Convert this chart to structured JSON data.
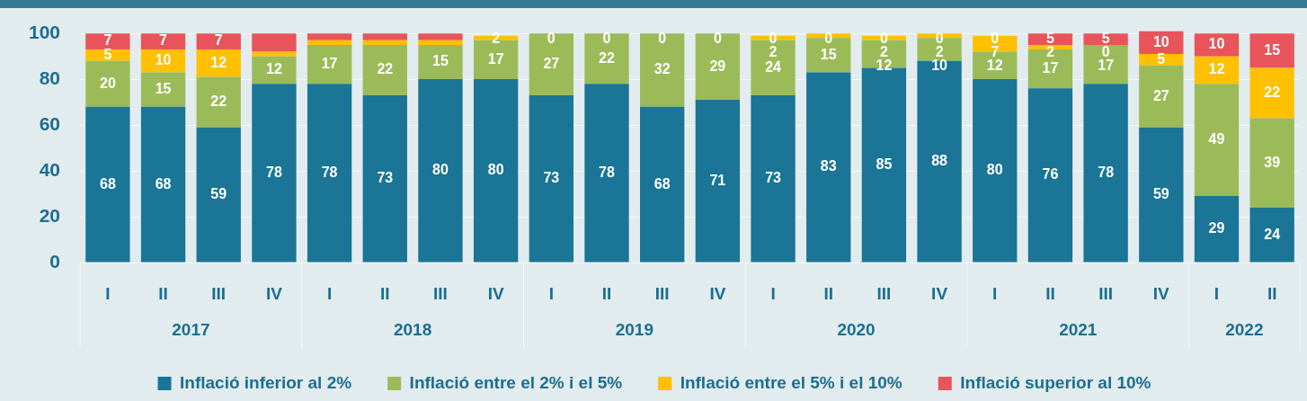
{
  "chart_data": {
    "type": "bar",
    "stacked": true,
    "categories": [
      "I",
      "II",
      "III",
      "IV",
      "I",
      "II",
      "III",
      "IV",
      "I",
      "II",
      "III",
      "IV",
      "I",
      "II",
      "III",
      "IV",
      "I",
      "II",
      "III",
      "IV",
      "I",
      "II"
    ],
    "annotations": [
      "2017",
      "2018",
      "2019",
      "2020",
      "2021",
      "2022"
    ],
    "series": [
      {
        "name": "Inflació inferior al 2%",
        "color": "#1a7596",
        "values": [
          68,
          68,
          59,
          78,
          78,
          73,
          80,
          80,
          73,
          78,
          68,
          71,
          73,
          83,
          85,
          88,
          80,
          76,
          78,
          59,
          29,
          24
        ],
        "value_labels": [
          "68",
          "68",
          "59",
          "78",
          "78",
          "73",
          "80",
          "80",
          "73",
          "78",
          "68",
          "71",
          "73",
          "83",
          "85",
          "88",
          "80",
          "76",
          "78",
          "59",
          "29",
          "24"
        ]
      },
      {
        "name": "Inflació entre el 2% i el 5%",
        "color": "#9bbb59",
        "values": [
          20,
          15,
          22,
          12,
          17,
          22,
          15,
          17,
          27,
          22,
          32,
          29,
          24,
          15,
          12,
          10,
          12,
          17,
          17,
          27,
          49,
          39
        ],
        "value_labels": [
          "20",
          "15",
          "22",
          "12",
          "17",
          "22",
          "15",
          "17",
          "27",
          "22",
          "32",
          "29",
          "24",
          "15",
          "12",
          "10",
          "12",
          "17",
          "17",
          "27",
          "49",
          "39"
        ]
      },
      {
        "name": "Inflació entre el 5% i el 10%",
        "color": "#ffc000",
        "values": [
          5,
          10,
          12,
          2,
          2,
          2,
          2,
          2,
          0,
          0,
          0,
          0,
          2,
          2,
          2,
          2,
          7,
          2,
          0,
          5,
          12,
          22
        ],
        "value_labels": [
          "5",
          "10",
          "12",
          null,
          null,
          null,
          null,
          "2",
          "0",
          "0",
          "0",
          "0",
          "2",
          null,
          "2",
          "2",
          "7",
          "2",
          "0",
          "5",
          "12",
          "22"
        ]
      },
      {
        "name": "Inflació superior al 10%",
        "color": "#e9545a",
        "values": [
          7,
          7,
          7,
          8,
          3,
          3,
          3,
          0,
          0,
          0,
          0,
          0,
          0,
          0,
          0,
          0,
          0,
          5,
          5,
          10,
          10,
          15
        ],
        "value_labels": [
          "7",
          "7",
          "7",
          null,
          null,
          null,
          null,
          null,
          null,
          null,
          null,
          null,
          "0",
          "0",
          "0",
          "0",
          "0",
          "5",
          "5",
          "10",
          "10",
          "15"
        ]
      }
    ],
    "ylim": [
      0,
      101
    ],
    "yticks": [
      0,
      20,
      40,
      60,
      80,
      100
    ],
    "grid": "y",
    "legend": "bottom"
  }
}
